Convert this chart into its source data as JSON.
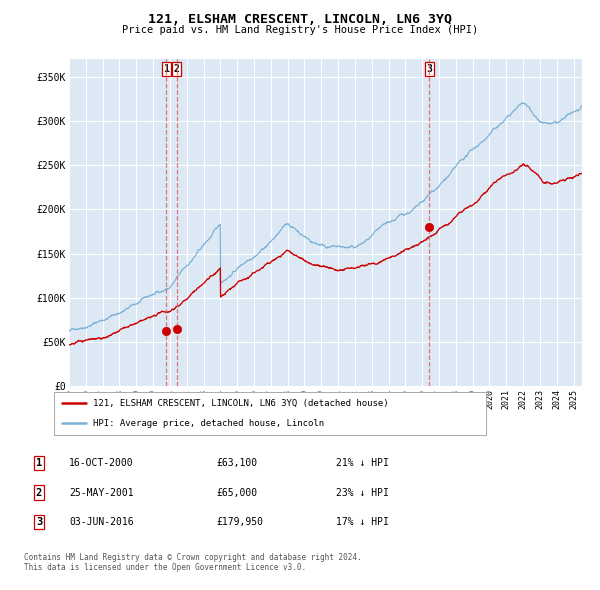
{
  "title": "121, ELSHAM CRESCENT, LINCOLN, LN6 3YQ",
  "subtitle": "Price paid vs. HM Land Registry's House Price Index (HPI)",
  "bg_color": "#dce9f5",
  "plot_bg_color": "#dce9f5",
  "grid_color": "#ffffff",
  "hpi_color": "#7bafd4",
  "price_color": "#cc0000",
  "marker_color": "#cc0000",
  "transaction_dashes_color": "#e06060",
  "ylim": [
    0,
    370000
  ],
  "yticks": [
    0,
    50000,
    100000,
    150000,
    200000,
    250000,
    300000,
    350000
  ],
  "ytick_labels": [
    "£0",
    "£50K",
    "£100K",
    "£150K",
    "£200K",
    "£250K",
    "£300K",
    "£350K"
  ],
  "transactions": [
    {
      "label": "1",
      "date_num": 2000.79,
      "price": 63100
    },
    {
      "label": "2",
      "date_num": 2001.4,
      "price": 65000
    },
    {
      "label": "3",
      "date_num": 2016.42,
      "price": 179950
    }
  ],
  "legend_price_label": "121, ELSHAM CRESCENT, LINCOLN, LN6 3YQ (detached house)",
  "legend_hpi_label": "HPI: Average price, detached house, Lincoln",
  "table_rows": [
    {
      "num": "1",
      "date": "16-OCT-2000",
      "price": "£63,100",
      "note": "21% ↓ HPI"
    },
    {
      "num": "2",
      "date": "25-MAY-2001",
      "price": "£65,000",
      "note": "23% ↓ HPI"
    },
    {
      "num": "3",
      "date": "03-JUN-2016",
      "price": "£179,950",
      "note": "17% ↓ HPI"
    }
  ],
  "footer": "Contains HM Land Registry data © Crown copyright and database right 2024.\nThis data is licensed under the Open Government Licence v3.0.",
  "xstart": 1995.0,
  "xend": 2025.5
}
